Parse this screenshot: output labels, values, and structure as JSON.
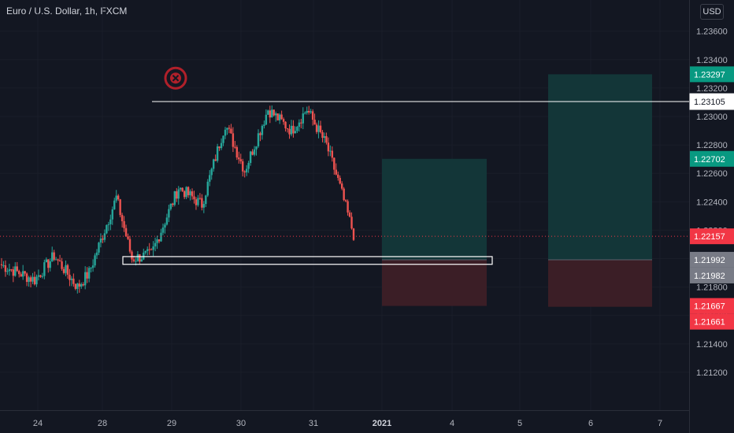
{
  "header": {
    "symbol_title": "Euro / U.S. Dollar, 1h, FXCM",
    "currency": "USD"
  },
  "colors": {
    "background": "#131722",
    "bull": "#26a69a",
    "bear": "#ef5350",
    "axis_text": "#b2b5be",
    "profit_zone": "#13383a",
    "loss_zone": "#3d1f27",
    "target_label": "#089981",
    "stop_label": "#f23645",
    "price_label": "#f23645",
    "level_label": "#787b86",
    "marker": "#b0202a"
  },
  "chart_data": {
    "type": "candlestick",
    "symbol": "EURUSD",
    "timeframe": "1h",
    "ylim": [
      1.2105,
      1.2372
    ],
    "x_ticks": [
      "24",
      "28",
      "29",
      "30",
      "31",
      "2021",
      "4",
      "5",
      "6",
      "7"
    ],
    "y_ticks": [
      "1.21200",
      "1.21400",
      "1.21600",
      "1.21800",
      "1.22000",
      "1.22200",
      "1.22400",
      "1.22600",
      "1.22800",
      "1.23000",
      "1.23200",
      "1.23400",
      "1.23600"
    ],
    "series": [
      {
        "start": 1.2196,
        "end": 1.2185,
        "steps": 18
      },
      {
        "start": 1.2185,
        "end": 1.2202,
        "steps": 10
      },
      {
        "start": 1.2202,
        "end": 1.218,
        "steps": 12
      },
      {
        "start": 1.218,
        "end": 1.219,
        "steps": 6
      },
      {
        "start": 1.219,
        "end": 1.2243,
        "steps": 14
      },
      {
        "start": 1.2243,
        "end": 1.22,
        "steps": 8
      },
      {
        "start": 1.22,
        "end": 1.2203,
        "steps": 10
      },
      {
        "start": 1.2203,
        "end": 1.225,
        "steps": 14
      },
      {
        "start": 1.225,
        "end": 1.2238,
        "steps": 12
      },
      {
        "start": 1.2238,
        "end": 1.2295,
        "steps": 12
      },
      {
        "start": 1.2295,
        "end": 1.2262,
        "steps": 10
      },
      {
        "start": 1.2262,
        "end": 1.2305,
        "steps": 12
      },
      {
        "start": 1.2305,
        "end": 1.229,
        "steps": 12
      },
      {
        "start": 1.229,
        "end": 1.2305,
        "steps": 8
      },
      {
        "start": 1.2305,
        "end": 1.228,
        "steps": 10
      },
      {
        "start": 1.228,
        "end": 1.2255,
        "steps": 6
      },
      {
        "start": 1.2255,
        "end": 1.2217,
        "steps": 8
      }
    ],
    "horizontal_line": {
      "price": 1.23105,
      "label": "1.23105"
    },
    "current_price": {
      "price": 1.22157,
      "label": "1.22157"
    },
    "support_zone": {
      "top": 1.21992,
      "bottom": 1.21982
    },
    "positions": [
      {
        "entry": 1.21992,
        "target": 1.22702,
        "stop": 1.21667
      },
      {
        "entry": 1.21992,
        "target": 1.23297,
        "stop": 1.21661
      }
    ],
    "price_labels": [
      {
        "price": 1.23297,
        "label": "1.23297",
        "kind": "target"
      },
      {
        "price": 1.23105,
        "label": "1.23105",
        "kind": "line"
      },
      {
        "price": 1.22702,
        "label": "1.22702",
        "kind": "target"
      },
      {
        "price": 1.22157,
        "label": "1.22157",
        "kind": "current"
      },
      {
        "price": 1.21992,
        "label": "1.21992",
        "kind": "level"
      },
      {
        "price": 1.21982,
        "label": "1.21982",
        "kind": "level"
      },
      {
        "price": 1.21667,
        "label": "1.21667",
        "kind": "stop"
      },
      {
        "price": 1.21661,
        "label": "1.21661",
        "kind": "stop"
      }
    ],
    "marker": {
      "icon": "close-circle-icon",
      "price": 1.2327
    }
  }
}
